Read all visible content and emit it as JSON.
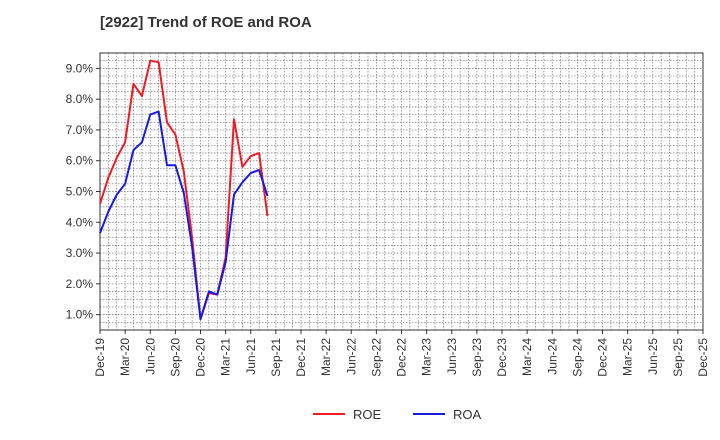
{
  "chart_data": {
    "type": "line",
    "title": "[2922]  Trend of ROE and ROA",
    "xlabel": "",
    "ylabel": "",
    "ylim": [
      0.5,
      9.5
    ],
    "y_ticks": [
      "1.0%",
      "2.0%",
      "3.0%",
      "4.0%",
      "5.0%",
      "6.0%",
      "7.0%",
      "8.0%",
      "9.0%"
    ],
    "x_ticks": [
      "Dec-19",
      "Mar-20",
      "Jun-20",
      "Sep-20",
      "Dec-20",
      "Mar-21",
      "Jun-21",
      "Sep-21",
      "Dec-21",
      "Mar-22",
      "Jun-22",
      "Sep-22",
      "Dec-22",
      "Mar-23",
      "Jun-23",
      "Sep-23",
      "Dec-23",
      "Mar-24",
      "Jun-24",
      "Sep-24",
      "Dec-24",
      "Mar-25",
      "Jun-25",
      "Sep-25",
      "Dec-25"
    ],
    "x_tick_step": 3,
    "grid": true,
    "legend_position": "bottom",
    "series": [
      {
        "name": "ROE",
        "color": "#ee1c25",
        "values": [
          4.6,
          5.45,
          6.1,
          6.6,
          8.5,
          8.1,
          9.25,
          9.2,
          7.25,
          6.85,
          5.65,
          3.5,
          0.85,
          1.7,
          1.65,
          2.85,
          7.35,
          5.8,
          6.15,
          6.25,
          4.2
        ]
      },
      {
        "name": "ROA",
        "color": "#1a1adf",
        "values": [
          3.65,
          4.35,
          4.9,
          5.25,
          6.35,
          6.6,
          7.5,
          7.6,
          5.85,
          5.85,
          4.95,
          3.2,
          0.85,
          1.75,
          1.65,
          2.7,
          4.9,
          5.3,
          5.6,
          5.7,
          4.85
        ]
      }
    ]
  }
}
